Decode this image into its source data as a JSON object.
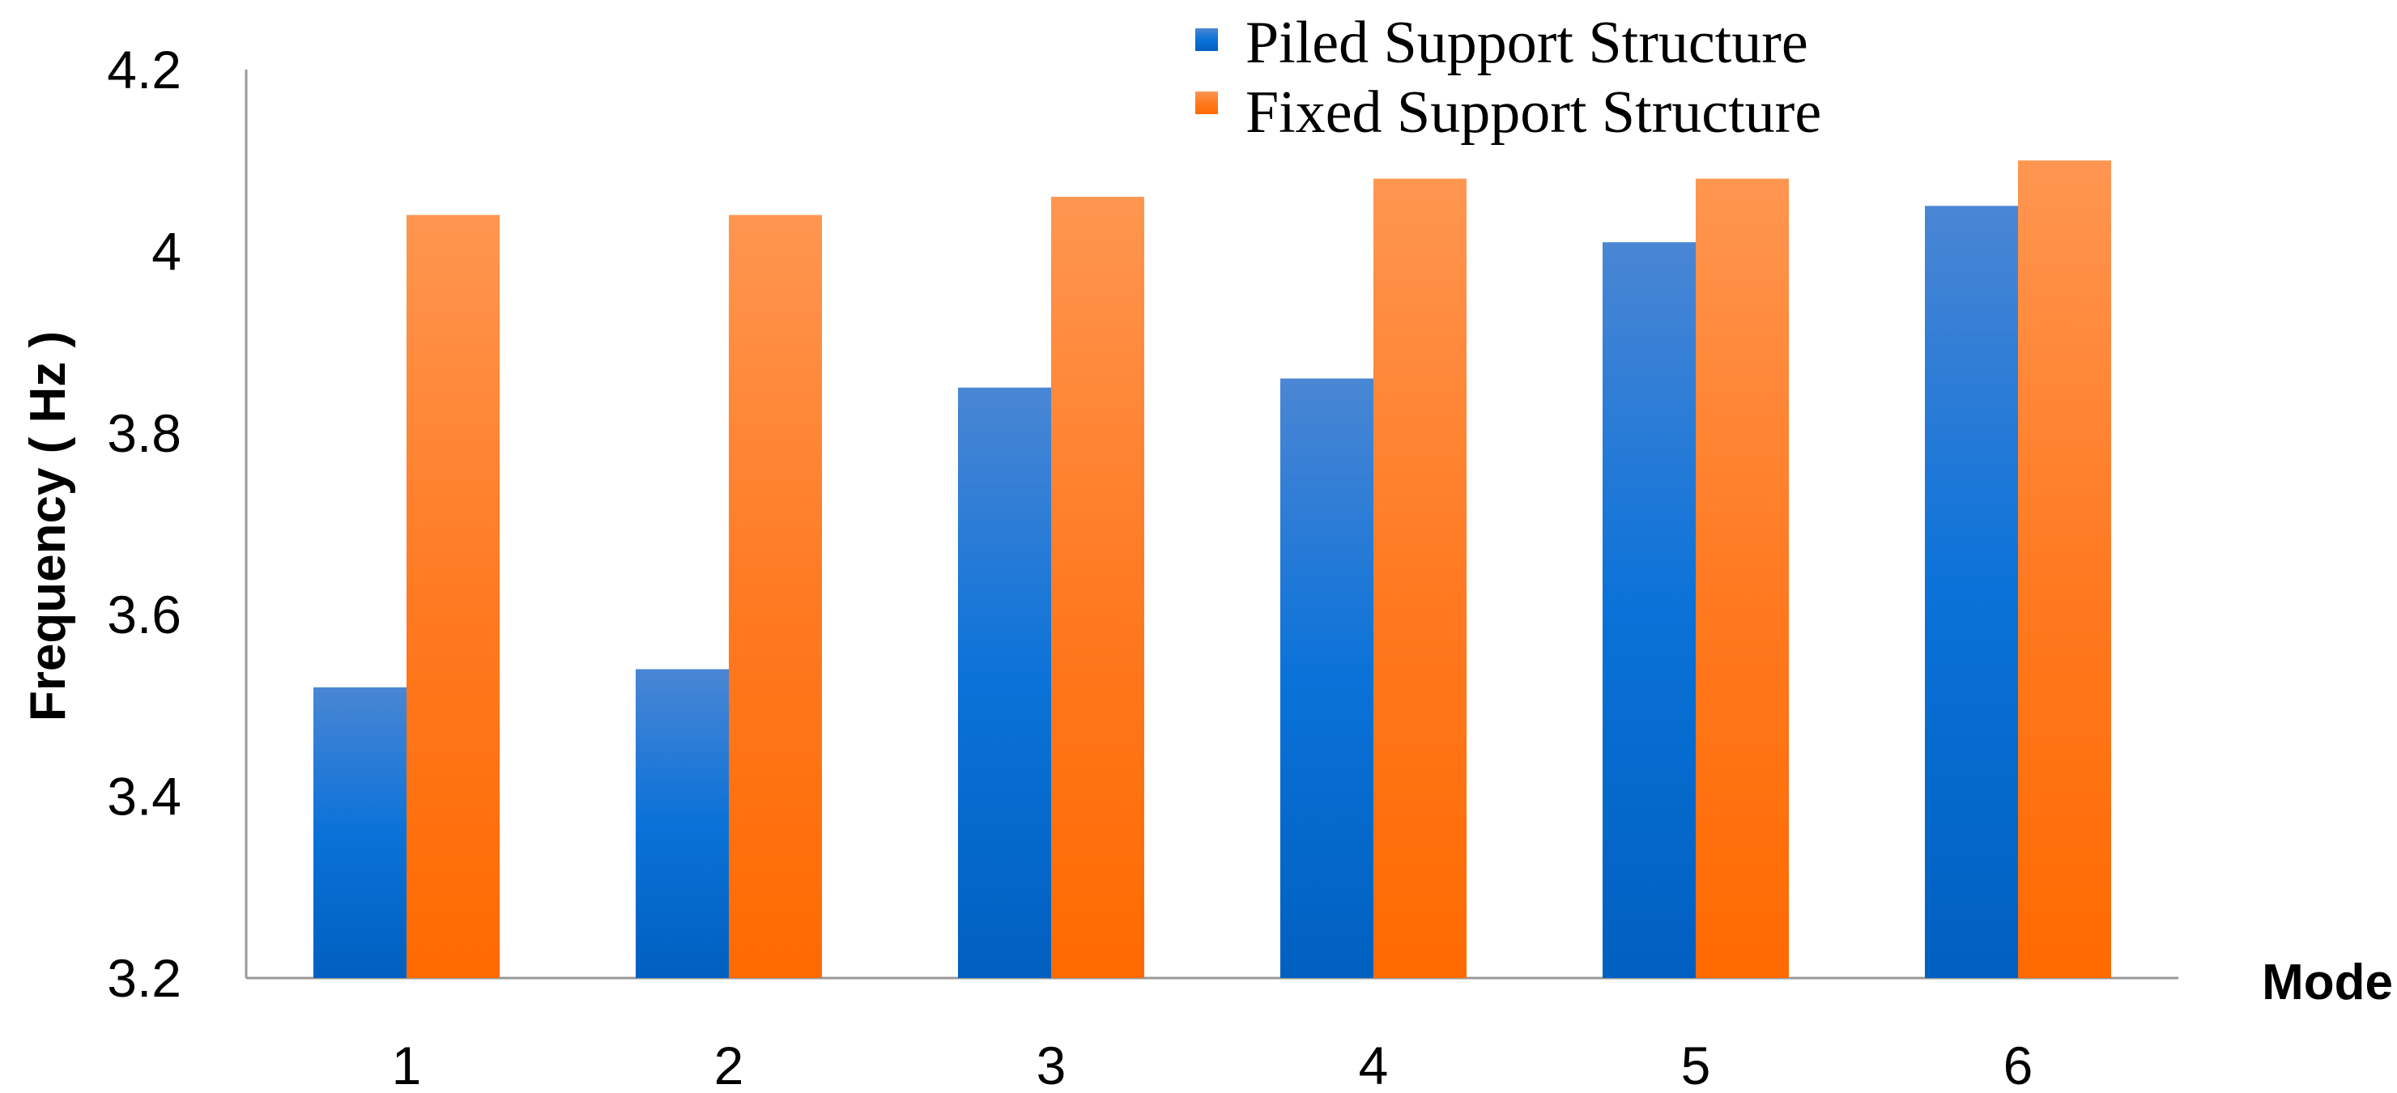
{
  "chart_data": {
    "type": "bar",
    "title": "",
    "xlabel": "Mode",
    "ylabel": "Frequency ( Hz )",
    "categories": [
      "1",
      "2",
      "3",
      "4",
      "5",
      "6"
    ],
    "ylim": [
      3.2,
      4.2
    ],
    "yticks": [
      "3.2",
      "3.4",
      "3.6",
      "3.8",
      "4",
      "4.2"
    ],
    "grid": false,
    "legend_position": "top-right",
    "series": [
      {
        "name": "Piled Support Structure",
        "color": "#0a6fd0",
        "values": [
          3.52,
          3.54,
          3.85,
          3.86,
          4.01,
          4.05
        ]
      },
      {
        "name": "Fixed Support Structure",
        "color": "#ff7414",
        "values": [
          4.04,
          4.04,
          4.06,
          4.08,
          4.08,
          4.1
        ]
      }
    ]
  }
}
